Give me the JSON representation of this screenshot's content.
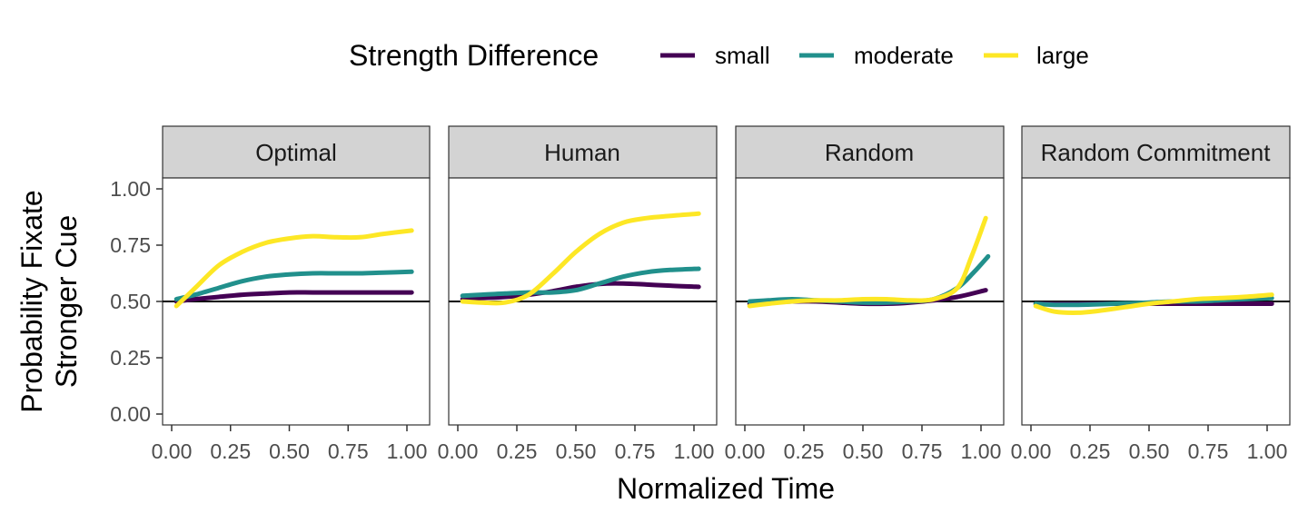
{
  "chart_data": {
    "type": "line",
    "xlabel": "Normalized Time",
    "ylabel_lines": [
      "Probability Fixate",
      "Stronger Cue"
    ],
    "xlim": [
      0,
      1
    ],
    "ylim": [
      0,
      1
    ],
    "x_ticks": [
      "0.00",
      "0.25",
      "0.50",
      "0.75",
      "1.00"
    ],
    "y_ticks": [
      "0.00",
      "0.25",
      "0.50",
      "0.75",
      "1.00"
    ],
    "reference_line_y": 0.5,
    "legend": {
      "title": "Strength Difference",
      "position": "top",
      "items": [
        {
          "label": "small",
          "color": "#440154"
        },
        {
          "label": "moderate",
          "color": "#21908C"
        },
        {
          "label": "large",
          "color": "#FDE725"
        }
      ]
    },
    "facets": [
      {
        "title": "Optimal",
        "series": [
          {
            "name": "small",
            "color": "#440154",
            "x": [
              0.02,
              0.1,
              0.2,
              0.3,
              0.4,
              0.5,
              0.6,
              0.7,
              0.8,
              0.9,
              1.02
            ],
            "y": [
              0.5,
              0.51,
              0.52,
              0.53,
              0.535,
              0.54,
              0.54,
              0.54,
              0.54,
              0.54,
              0.54
            ]
          },
          {
            "name": "moderate",
            "color": "#21908C",
            "x": [
              0.02,
              0.1,
              0.2,
              0.3,
              0.4,
              0.5,
              0.6,
              0.7,
              0.8,
              0.9,
              1.02
            ],
            "y": [
              0.51,
              0.53,
              0.56,
              0.59,
              0.61,
              0.62,
              0.625,
              0.625,
              0.625,
              0.628,
              0.632
            ]
          },
          {
            "name": "large",
            "color": "#FDE725",
            "x": [
              0.02,
              0.1,
              0.2,
              0.3,
              0.4,
              0.5,
              0.6,
              0.7,
              0.8,
              0.9,
              1.02
            ],
            "y": [
              0.48,
              0.56,
              0.66,
              0.72,
              0.76,
              0.78,
              0.79,
              0.785,
              0.785,
              0.8,
              0.815
            ]
          }
        ]
      },
      {
        "title": "Human",
        "series": [
          {
            "name": "small",
            "color": "#440154",
            "x": [
              0.02,
              0.1,
              0.2,
              0.3,
              0.4,
              0.5,
              0.6,
              0.7,
              0.8,
              0.9,
              1.02
            ],
            "y": [
              0.51,
              0.515,
              0.52,
              0.53,
              0.545,
              0.565,
              0.578,
              0.58,
              0.575,
              0.57,
              0.565
            ]
          },
          {
            "name": "moderate",
            "color": "#21908C",
            "x": [
              0.02,
              0.1,
              0.2,
              0.3,
              0.4,
              0.5,
              0.6,
              0.7,
              0.8,
              0.9,
              1.02
            ],
            "y": [
              0.525,
              0.53,
              0.535,
              0.54,
              0.54,
              0.55,
              0.58,
              0.61,
              0.63,
              0.64,
              0.645
            ]
          },
          {
            "name": "large",
            "color": "#FDE725",
            "x": [
              0.02,
              0.1,
              0.2,
              0.3,
              0.4,
              0.5,
              0.6,
              0.7,
              0.8,
              0.9,
              1.02
            ],
            "y": [
              0.5,
              0.495,
              0.495,
              0.53,
              0.62,
              0.72,
              0.8,
              0.85,
              0.87,
              0.88,
              0.89
            ]
          }
        ]
      },
      {
        "title": "Random",
        "series": [
          {
            "name": "small",
            "color": "#440154",
            "x": [
              0.02,
              0.1,
              0.2,
              0.3,
              0.4,
              0.5,
              0.6,
              0.7,
              0.8,
              0.9,
              1.02
            ],
            "y": [
              0.49,
              0.495,
              0.5,
              0.5,
              0.495,
              0.49,
              0.49,
              0.495,
              0.505,
              0.52,
              0.55
            ]
          },
          {
            "name": "moderate",
            "color": "#21908C",
            "x": [
              0.02,
              0.1,
              0.2,
              0.3,
              0.4,
              0.5,
              0.6,
              0.7,
              0.8,
              0.9,
              0.97,
              1.03
            ],
            "y": [
              0.5,
              0.505,
              0.51,
              0.505,
              0.5,
              0.495,
              0.495,
              0.5,
              0.51,
              0.56,
              0.63,
              0.7
            ]
          },
          {
            "name": "large",
            "color": "#FDE725",
            "x": [
              0.02,
              0.1,
              0.2,
              0.3,
              0.4,
              0.5,
              0.6,
              0.7,
              0.8,
              0.9,
              0.96,
              1.02
            ],
            "y": [
              0.48,
              0.49,
              0.5,
              0.505,
              0.505,
              0.51,
              0.51,
              0.505,
              0.51,
              0.56,
              0.7,
              0.87
            ]
          }
        ]
      },
      {
        "title": "Random Commitment",
        "series": [
          {
            "name": "small",
            "color": "#440154",
            "x": [
              0.02,
              0.2,
              0.4,
              0.6,
              0.8,
              1.02
            ],
            "y": [
              0.49,
              0.49,
              0.49,
              0.49,
              0.49,
              0.49
            ]
          },
          {
            "name": "moderate",
            "color": "#21908C",
            "x": [
              0.02,
              0.1,
              0.2,
              0.3,
              0.4,
              0.5,
              0.6,
              0.7,
              0.8,
              0.9,
              1.02
            ],
            "y": [
              0.49,
              0.485,
              0.485,
              0.488,
              0.492,
              0.495,
              0.5,
              0.5,
              0.505,
              0.51,
              0.515
            ]
          },
          {
            "name": "large",
            "color": "#FDE725",
            "x": [
              0.02,
              0.1,
              0.2,
              0.3,
              0.4,
              0.5,
              0.6,
              0.7,
              0.8,
              0.9,
              1.02
            ],
            "y": [
              0.48,
              0.455,
              0.45,
              0.46,
              0.475,
              0.49,
              0.5,
              0.51,
              0.515,
              0.52,
              0.53
            ]
          }
        ]
      }
    ]
  }
}
